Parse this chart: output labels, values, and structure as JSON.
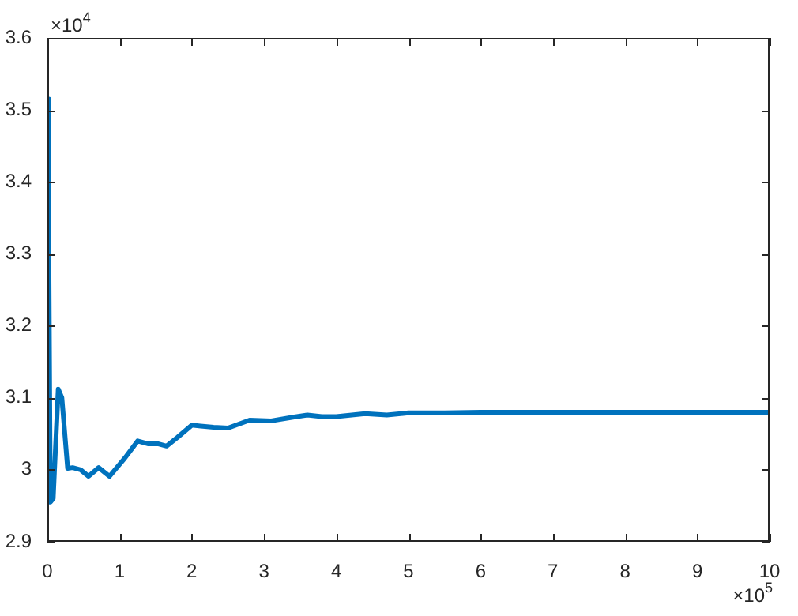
{
  "chart_data": {
    "type": "line",
    "x": [
      0,
      0.02,
      0.04,
      0.08,
      0.15,
      0.2,
      0.28,
      0.35,
      0.46,
      0.57,
      0.71,
      0.86,
      1.07,
      1.25,
      1.4,
      1.54,
      1.65,
      1.8,
      2,
      2.3,
      2.5,
      2.8,
      3.1,
      3.4,
      3.6,
      3.8,
      4,
      4.4,
      4.7,
      5,
      5.5,
      6,
      7,
      8,
      9,
      10
    ],
    "series": [
      {
        "color": "#0072bd",
        "values": [
          3.515,
          3.3,
          2.955,
          2.96,
          3.112,
          3.1,
          3.002,
          3.003,
          3,
          2.991,
          3.003,
          2.991,
          3.016,
          3.04,
          3.036,
          3.036,
          3.033,
          3.045,
          3.062,
          3.059,
          3.058,
          3.069,
          3.068,
          3.073,
          3.076,
          3.074,
          3.074,
          3.078,
          3.076,
          3.079,
          3.079,
          3.08,
          3.08,
          3.08,
          3.08,
          3.08
        ]
      }
    ],
    "xlim": [
      0,
      10
    ],
    "ylim": [
      2.9,
      3.6
    ],
    "xticks": [
      0,
      1,
      2,
      3,
      4,
      5,
      6,
      7,
      8,
      9,
      10
    ],
    "yticks": [
      2.9,
      3,
      3.1,
      3.2,
      3.3,
      3.4,
      3.5,
      3.6
    ],
    "annotations": [
      "×10$^{4}$",
      "×10$^{5}$"
    ],
    "grid": false,
    "legend": false,
    "marker": "none",
    "line_style": "solid"
  }
}
